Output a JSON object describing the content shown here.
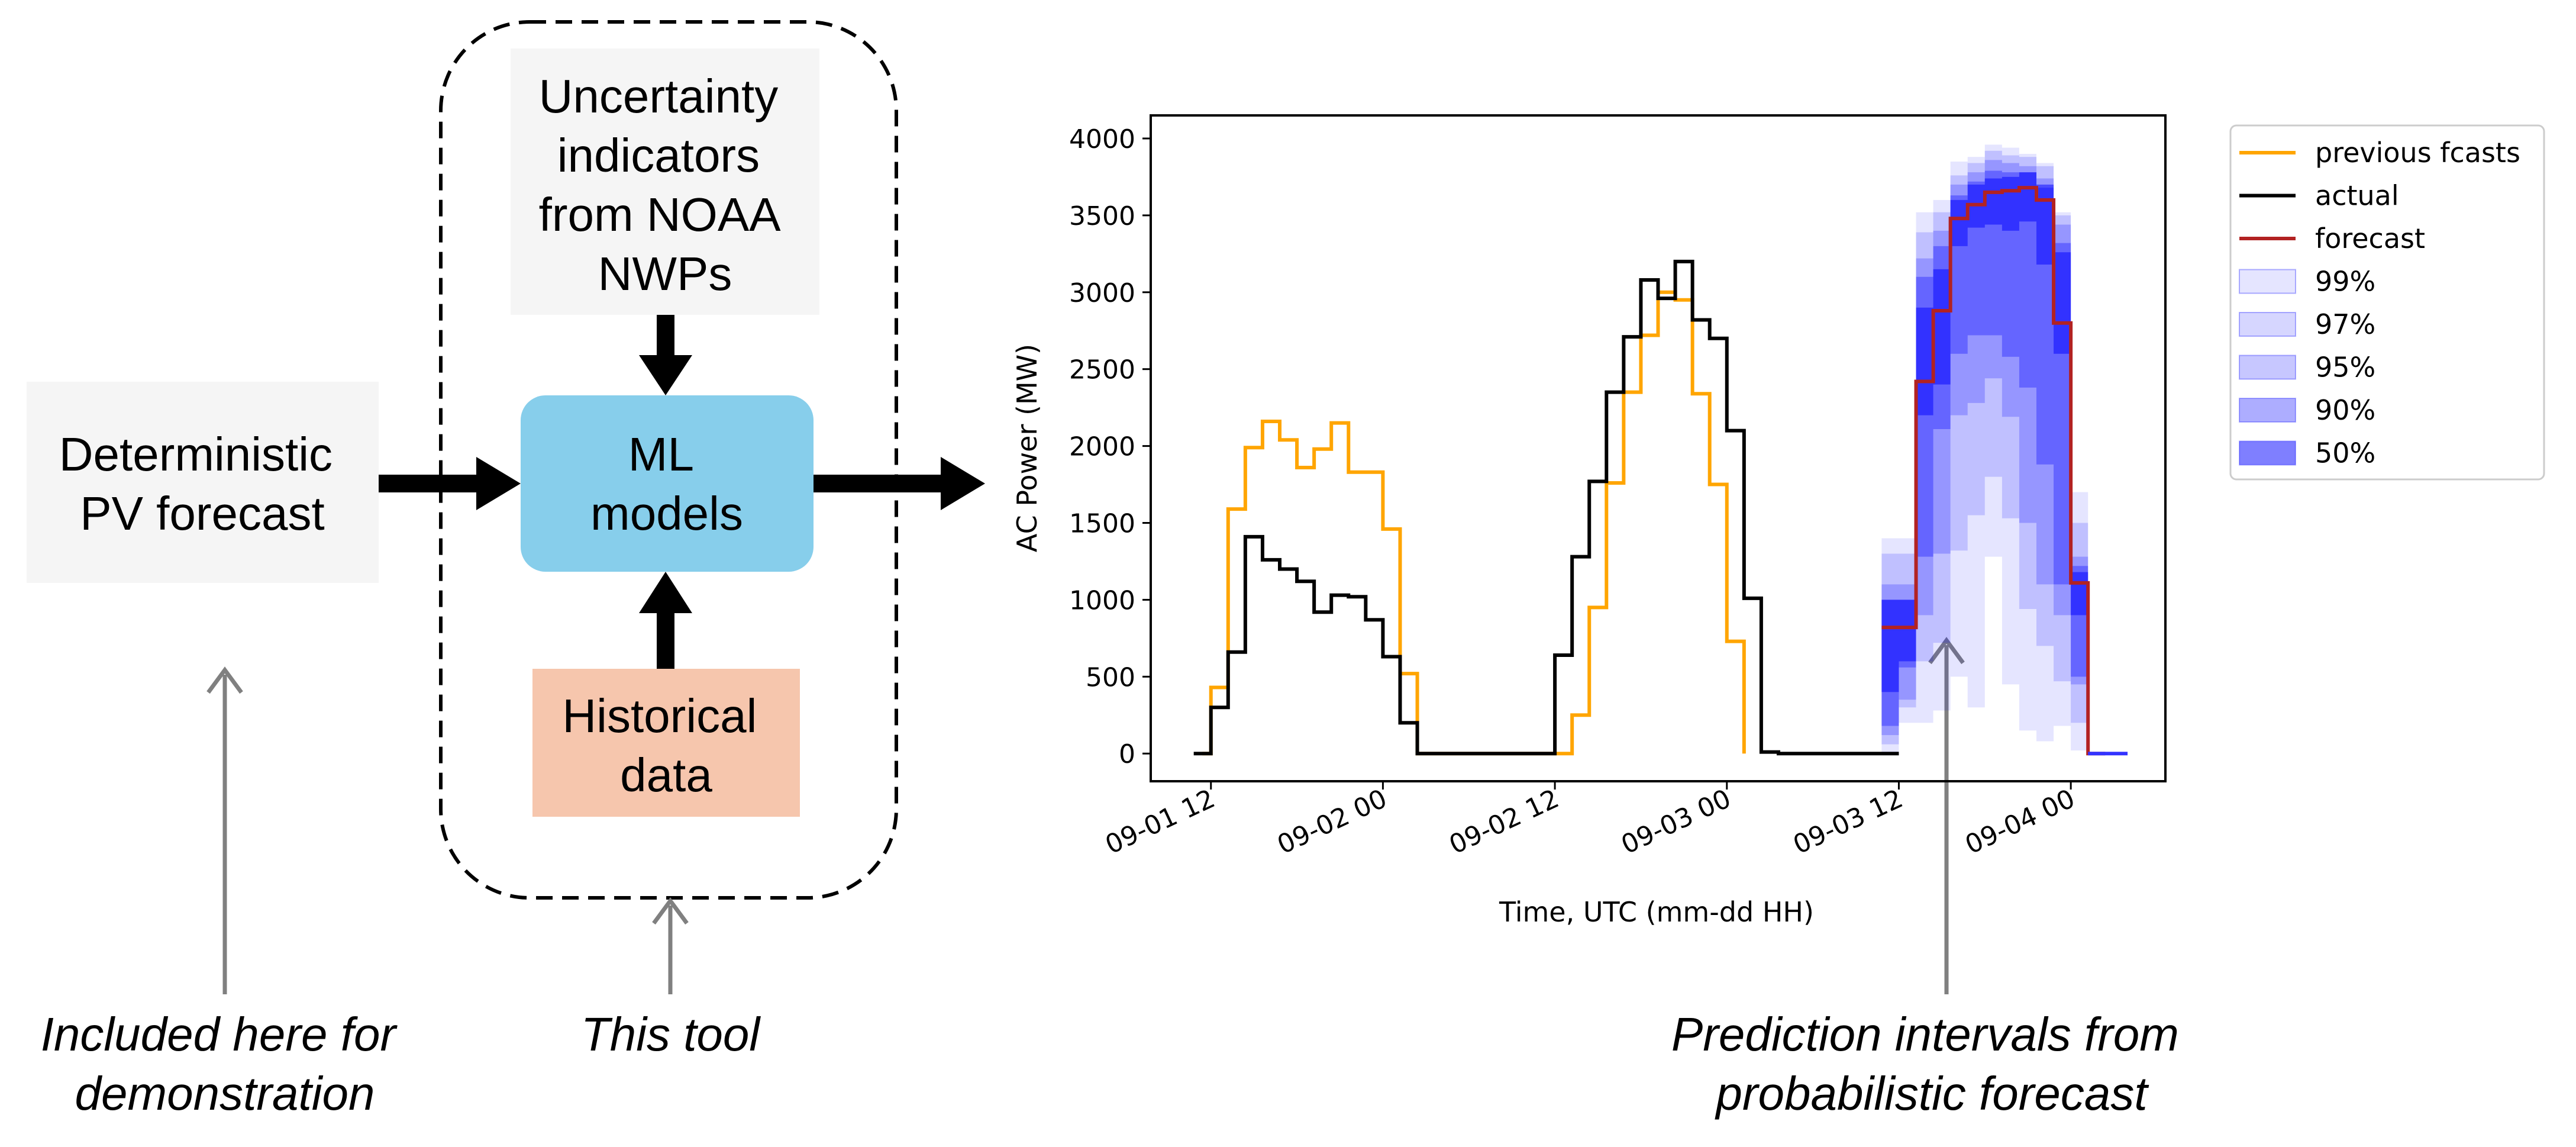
{
  "diagram": {
    "boxes": {
      "deterministic": {
        "lines": [
          "Deterministic",
          "PV forecast"
        ],
        "color": "#f5f5f5"
      },
      "uncertainty": {
        "lines": [
          "Uncertainty",
          "indicators",
          "from NOAA",
          "NWPs"
        ],
        "color": "#f5f5f5"
      },
      "ml": {
        "lines": [
          "ML",
          "models"
        ],
        "color": "#87ceeb"
      },
      "historical": {
        "lines": [
          "Historical",
          "data"
        ],
        "color": "#f6c6ad"
      }
    },
    "captions": {
      "demo": [
        "Included here for",
        "demonstration"
      ],
      "tool": [
        "This tool"
      ],
      "prediction": [
        "Prediction intervals from",
        "probabilistic forecast"
      ]
    }
  },
  "chart_data": {
    "type": "line",
    "xlabel": "Time, UTC (mm-dd HH)",
    "ylabel": "AC Power (MW)",
    "xlim": [
      -0.5,
      58.5
    ],
    "ylim": [
      -180,
      4150
    ],
    "x_ticks": [
      {
        "x": 3,
        "label": "09-01 12"
      },
      {
        "x": 13,
        "label": "09-02 00"
      },
      {
        "x": 23,
        "label": "09-02 12"
      },
      {
        "x": 33,
        "label": "09-03 00"
      },
      {
        "x": 43,
        "label": "09-03 12"
      },
      {
        "x": 53,
        "label": "09-04 00"
      }
    ],
    "y_ticks": [
      0,
      500,
      1000,
      1500,
      2000,
      2500,
      3000,
      3500,
      4000
    ],
    "x_unit_note": "",
    "legend": {
      "position": "top-right outside",
      "entries": [
        "previous fcasts",
        "actual",
        "forecast",
        "99%",
        "97%",
        "95%",
        "90%",
        "50%"
      ]
    },
    "series": [
      {
        "name": "previous fcasts",
        "color": "#ffa500",
        "x": [
          2.5,
          3,
          4,
          5,
          6,
          7,
          8,
          9,
          10,
          11,
          12,
          13,
          14,
          15,
          16,
          17,
          18,
          19,
          20,
          21,
          22,
          23,
          24,
          25,
          26,
          27,
          28,
          29,
          30,
          31,
          32,
          33,
          34
        ],
        "y": [
          0,
          430,
          1590,
          1990,
          2160,
          2040,
          1860,
          1980,
          2150,
          1830,
          1830,
          1460,
          520,
          0,
          0,
          0,
          0,
          0,
          0,
          0,
          0,
          0,
          250,
          950,
          1760,
          2350,
          2720,
          3000,
          2950,
          2340,
          1750,
          730,
          0
        ]
      },
      {
        "name": "actual",
        "color": "#000000",
        "x": [
          2,
          3,
          4,
          5,
          6,
          7,
          8,
          9,
          10,
          11,
          12,
          13,
          14,
          15,
          16,
          17,
          18,
          19,
          20,
          21,
          22,
          23,
          24,
          25,
          26,
          27,
          28,
          29,
          30,
          31,
          32,
          33,
          34,
          35,
          36,
          37,
          38,
          39,
          40,
          41,
          42,
          43
        ],
        "y": [
          0,
          300,
          660,
          1410,
          1260,
          1200,
          1120,
          920,
          1030,
          1020,
          870,
          630,
          200,
          0,
          0,
          0,
          0,
          0,
          0,
          0,
          0,
          640,
          1280,
          1770,
          2350,
          2710,
          3080,
          2960,
          3200,
          2820,
          2700,
          2100,
          1010,
          10,
          0,
          0,
          0,
          0,
          0,
          0,
          0,
          0
        ]
      },
      {
        "name": "forecast",
        "color": "#b22222",
        "x": [
          42,
          43,
          44,
          45,
          46,
          47,
          48,
          49,
          50,
          51,
          52,
          53,
          54,
          55
        ],
        "y": [
          820,
          820,
          2420,
          2880,
          3480,
          3570,
          3650,
          3660,
          3680,
          3600,
          2800,
          1110,
          0,
          0
        ]
      }
    ],
    "bands_x": [
      42,
      43,
      44,
      45,
      46,
      47,
      48,
      49,
      50,
      51,
      52,
      53,
      54,
      55,
      56
    ],
    "bands": [
      {
        "name": "99%",
        "color": "#0000ff",
        "opacity": 0.1,
        "lower": [
          0,
          200,
          200,
          280,
          500,
          300,
          1280,
          450,
          150,
          80,
          180,
          20,
          0,
          0,
          0
        ],
        "upper": [
          1400,
          1400,
          3520,
          3600,
          3850,
          3880,
          3960,
          3940,
          3900,
          3840,
          3520,
          1700,
          0,
          0,
          0
        ]
      },
      {
        "name": "97%",
        "color": "#0000ff",
        "opacity": 0.16,
        "lower": [
          60,
          300,
          600,
          720,
          1320,
          1550,
          1800,
          1530,
          940,
          700,
          470,
          200,
          0,
          0,
          0
        ],
        "upper": [
          1300,
          1300,
          3390,
          3520,
          3760,
          3840,
          3920,
          3890,
          3880,
          3820,
          3500,
          1500,
          0,
          0,
          0
        ]
      },
      {
        "name": "95%",
        "color": "#0000ff",
        "opacity": 0.22,
        "lower": [
          120,
          350,
          900,
          1300,
          2200,
          2280,
          2440,
          2190,
          1500,
          1100,
          900,
          450,
          0,
          0,
          0
        ],
        "upper": [
          1100,
          1100,
          3220,
          3400,
          3700,
          3780,
          3860,
          3840,
          3820,
          3740,
          3440,
          1280,
          0,
          0,
          0
        ]
      },
      {
        "name": "90%",
        "color": "#0000ff",
        "opacity": 0.32,
        "lower": [
          180,
          560,
          1280,
          2110,
          2600,
          2720,
          2720,
          2580,
          2380,
          1880,
          1100,
          500,
          0,
          0,
          0
        ],
        "upper": [
          1000,
          1000,
          3100,
          3300,
          3630,
          3720,
          3790,
          3780,
          3780,
          3680,
          3320,
          1220,
          0,
          0,
          0
        ]
      },
      {
        "name": "50%",
        "color": "#0000ff",
        "opacity": 0.5,
        "lower": [
          400,
          600,
          2200,
          2400,
          3300,
          3420,
          3440,
          3400,
          3460,
          3180,
          2600,
          900,
          0,
          0,
          0
        ],
        "upper": [
          1000,
          1000,
          2900,
          3150,
          3600,
          3700,
          3740,
          3750,
          3780,
          3700,
          3260,
          1180,
          0,
          0,
          0
        ]
      }
    ]
  }
}
